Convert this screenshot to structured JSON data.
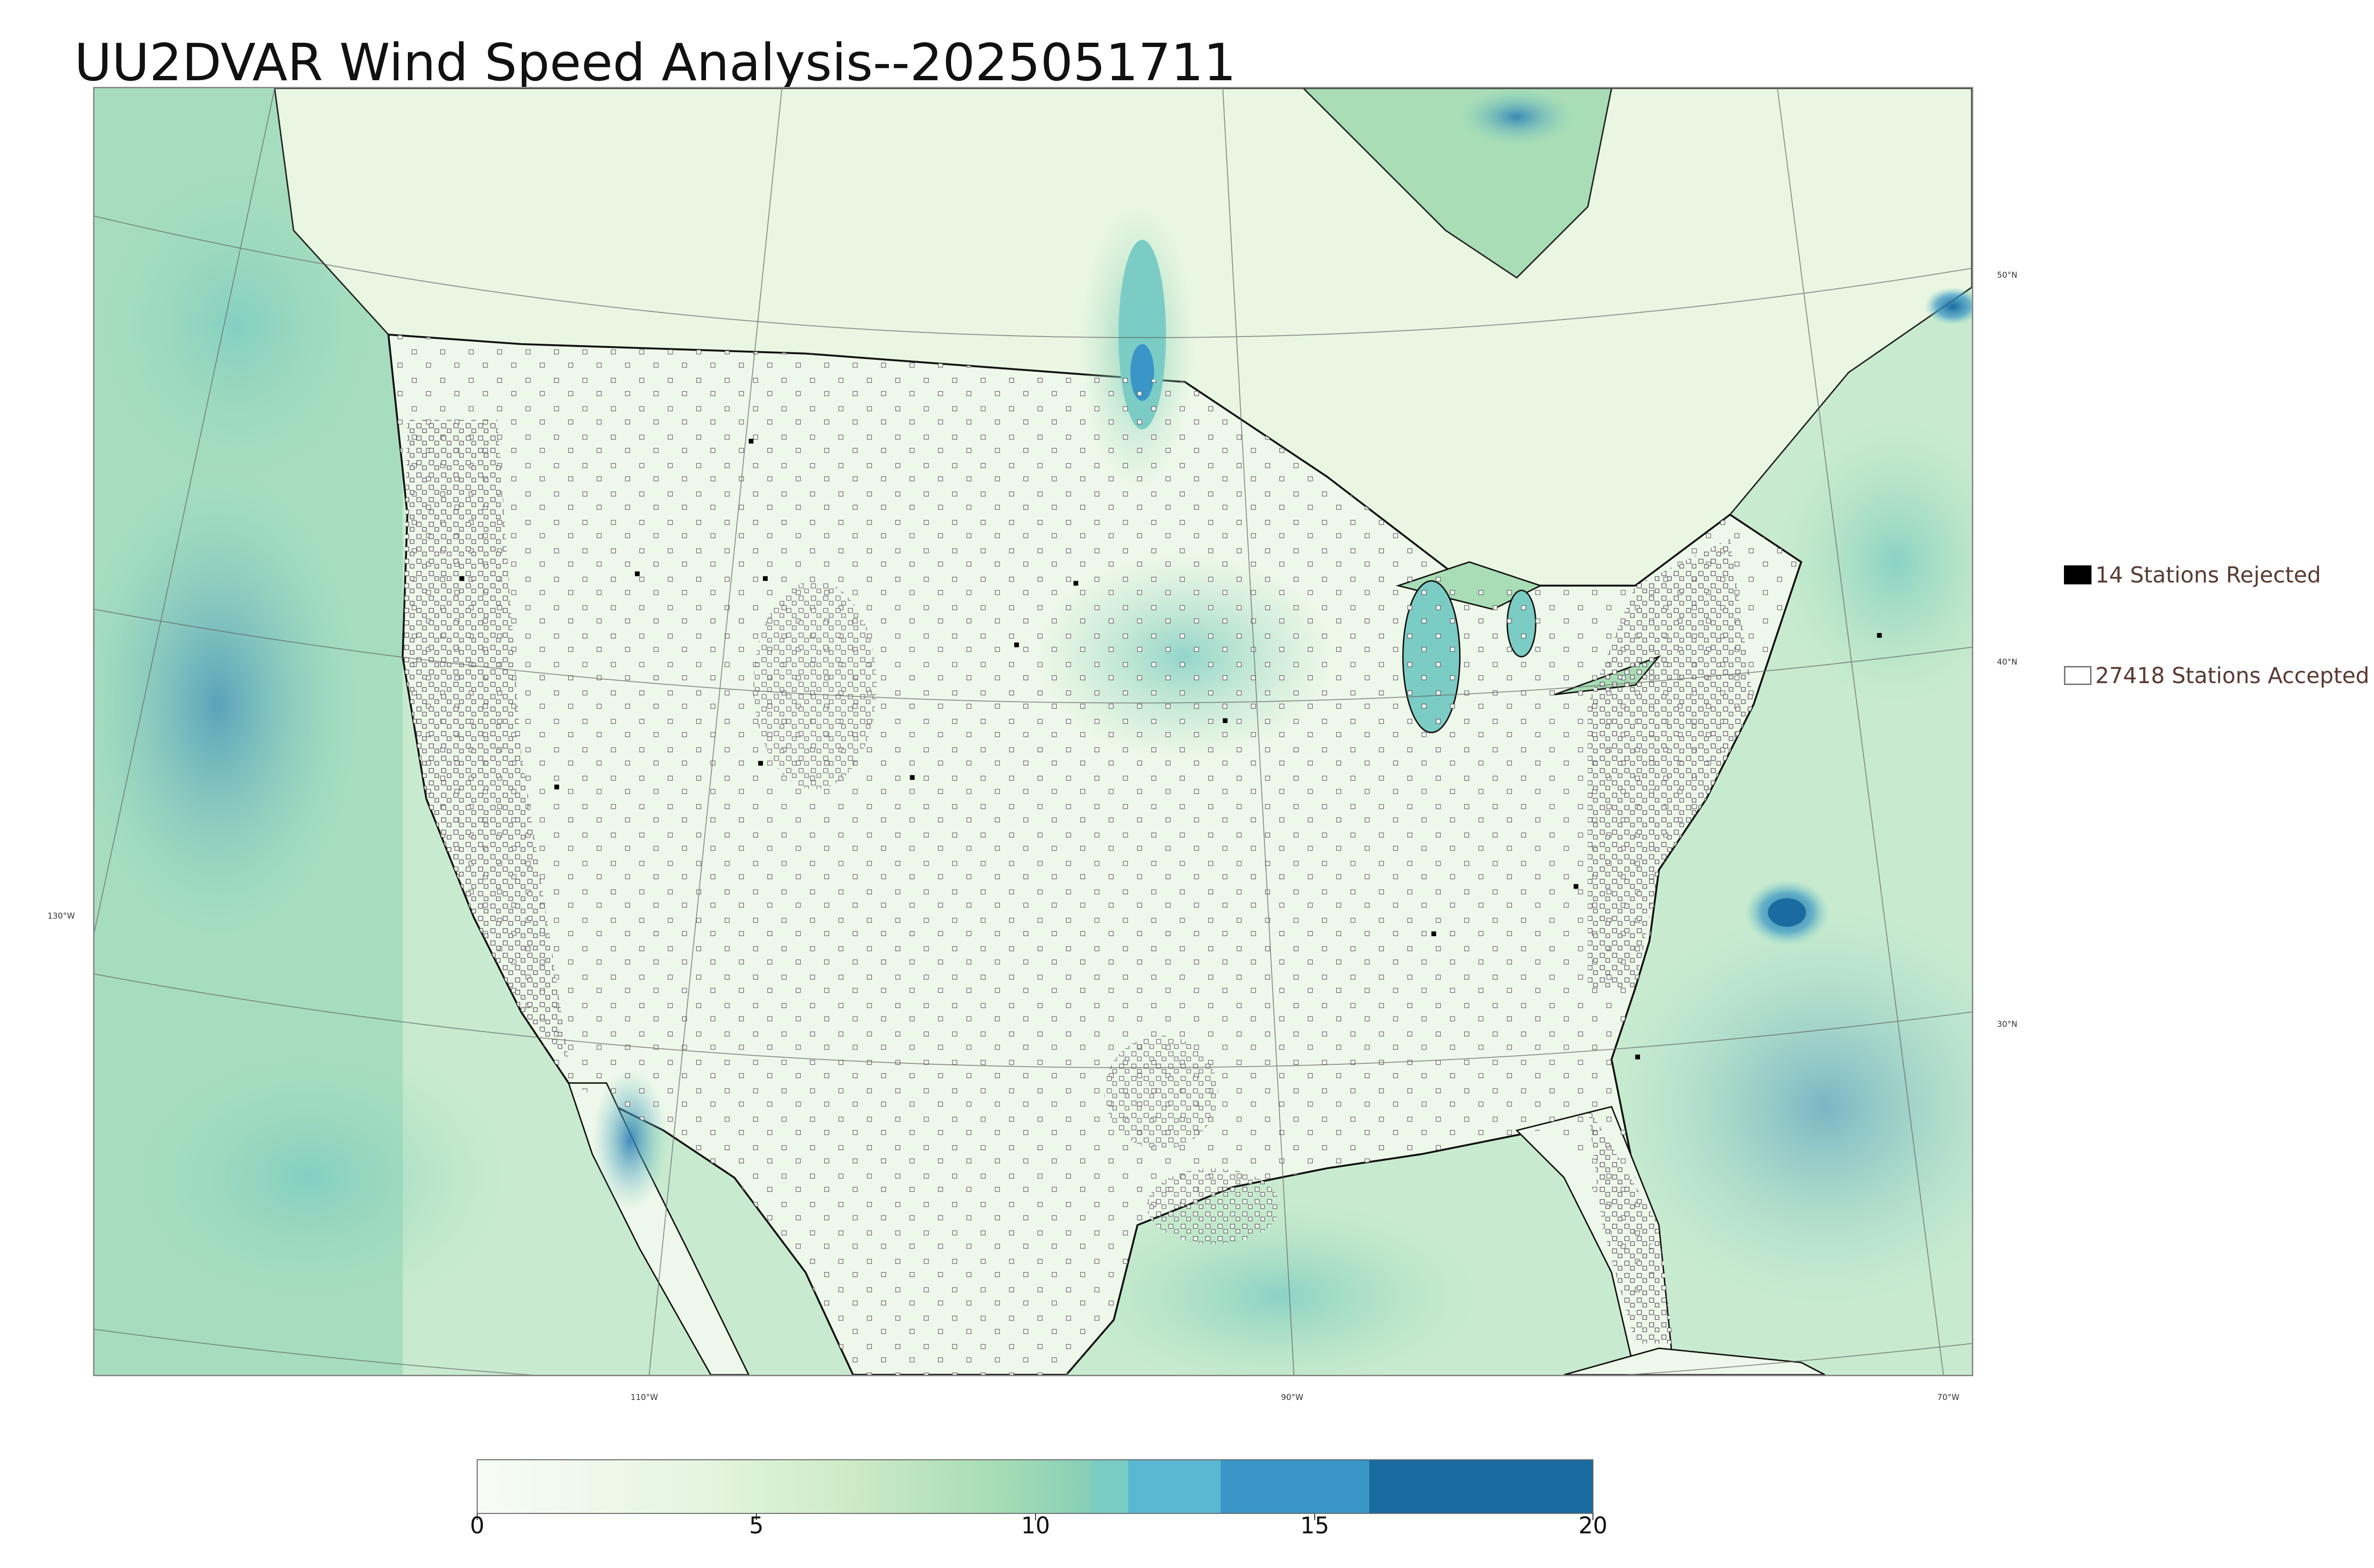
{
  "title": "UU2DVAR Wind Speed Analysis--2025051711",
  "map": {
    "lon_labels": [
      "110°W",
      "90°W",
      "70°W"
    ],
    "lat_labels": [
      "50°N",
      "40°N",
      "30°N"
    ],
    "lon_label_left": "130°W"
  },
  "legend": {
    "rejected": "14 Stations Rejected",
    "accepted": "27418 Stations Accepted"
  },
  "colorbar": {
    "ticks": [
      "0",
      "5",
      "10",
      "15",
      "20"
    ],
    "colors": [
      "#f3faf0",
      "#e5f5e0",
      "#cdebc6",
      "#a8ddb5",
      "#7bccc4",
      "#5ab8d2",
      "#3a96c6",
      "#1a6b9f"
    ]
  },
  "colors": {
    "land": "#eef8ea",
    "ocean": "#b9e3c6",
    "strong_wind": "#3a96c6"
  }
}
